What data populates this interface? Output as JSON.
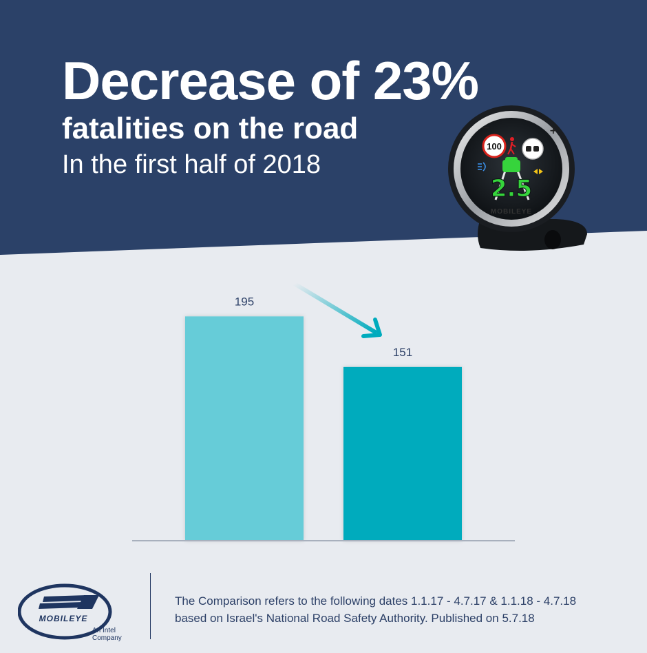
{
  "header": {
    "headline": "Decrease of 23%",
    "subhead": "fatalities on the road",
    "period": "In the first half of 2018"
  },
  "device": {
    "speed_sign": "100",
    "distance_value": "2.5",
    "brand": "MOBILEYE",
    "minus_symbol": "−",
    "plus_symbol": "+"
  },
  "chart_data": {
    "type": "bar",
    "categories": [
      "",
      ""
    ],
    "values": [
      195,
      151
    ],
    "data_labels": [
      "195",
      "151"
    ],
    "colors": [
      "#66ccd8",
      "#00abbd"
    ],
    "ylim": [
      0,
      200
    ],
    "title": "",
    "xlabel": "",
    "ylabel": "",
    "grid": false,
    "annotation": "downward trend arrow"
  },
  "footer": {
    "brand": "MOBILEYE",
    "tagline_line1": "An Intel",
    "tagline_line2": "Company",
    "note_line1": "The Comparison refers to the following dates 1.1.17 - 4.7.17 & 1.1.18 - 4.7.18",
    "note_line2": "based on Israel's National Road Safety Authority. Published on 5.7.18"
  },
  "colors": {
    "navy": "#2b4168",
    "background": "#e8ebf0",
    "bar_2017": "#66ccd8",
    "bar_2018": "#00abbd",
    "text_dark": "#2b3f66"
  }
}
